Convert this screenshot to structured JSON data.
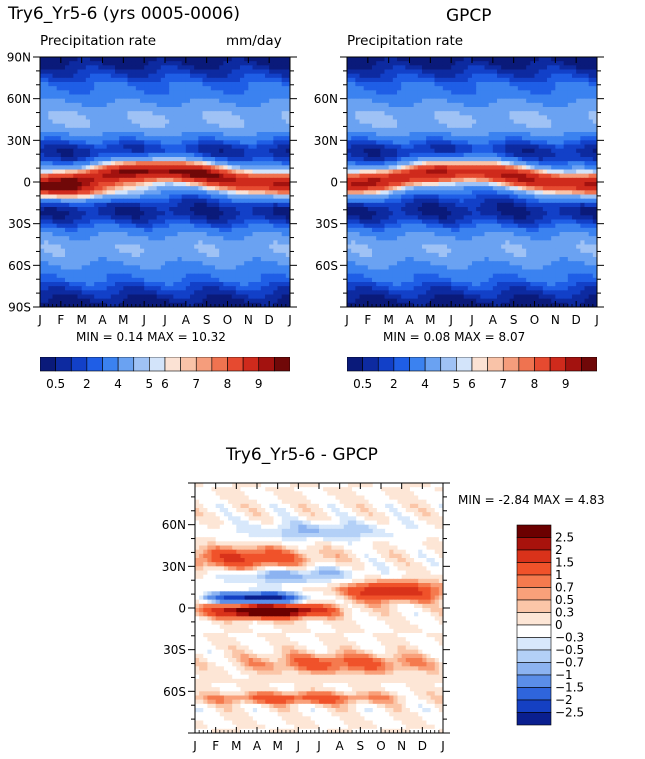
{
  "panel_ctrl": {
    "title": "Try6_Yr5-6 (yrs 0005-0006)",
    "subtitle": "Precipitation rate",
    "units": "mm/day",
    "minmax": "MIN =     0.14  MAX =    10.32"
  },
  "panel_obs": {
    "title": "GPCP",
    "subtitle": "Precipitation rate",
    "minmax": "MIN =     0.08  MAX =     8.07"
  },
  "panel_diff": {
    "title": "Try6_Yr5-6  -  GPCP",
    "minmax": "MIN =   -2.84  MAX =     4.83"
  },
  "abs_levels": [
    "0.5",
    "2",
    "4",
    "5",
    "6",
    "7",
    "8",
    "9"
  ],
  "diff_levels": [
    "2.5",
    "2",
    "1.5",
    "1",
    "0.7",
    "0.5",
    "0.3",
    "0",
    "−0.3",
    "−0.5",
    "−0.7",
    "−1",
    "−1.5",
    "−2",
    "−2.5"
  ],
  "colors": {
    "abs_palette": [
      "#0a1a7a",
      "#0d2aa0",
      "#1240c8",
      "#1f5ee6",
      "#3b82f0",
      "#6aa2f2",
      "#9fc2f5",
      "#d3e4fa",
      "#fbe2d4",
      "#f9c3a8",
      "#f59d7c",
      "#ef7350",
      "#e64a30",
      "#cf2a1c",
      "#a3120f",
      "#700808"
    ],
    "diff_palette": [
      "#6b0000",
      "#a8120c",
      "#d9321a",
      "#f0522a",
      "#f57a4e",
      "#f9a07a",
      "#fbc6a8",
      "#fde6d6",
      "#ffffff",
      "#d8e8fb",
      "#b3d0f7",
      "#8cb3f1",
      "#5b8ee8",
      "#2f65dc",
      "#1540c3",
      "#0a1f8f"
    ]
  },
  "chart_data": [
    {
      "type": "heatmap",
      "title": "Try6_Yr5-6 (yrs 0005-0006)",
      "subtitle": "Precipitation rate",
      "units": "mm/day",
      "x_ticks": [
        "J",
        "F",
        "M",
        "A",
        "M",
        "J",
        "J",
        "A",
        "S",
        "O",
        "N",
        "D",
        "J"
      ],
      "y_ticks": [
        "90N",
        "60N",
        "30N",
        "0",
        "30S",
        "60S",
        "90S"
      ],
      "ylim": [
        -90,
        90
      ],
      "min": 0.14,
      "max": 10.32
    },
    {
      "type": "heatmap",
      "title": "GPCP",
      "subtitle": "Precipitation rate",
      "x_ticks": [
        "J",
        "F",
        "M",
        "A",
        "M",
        "J",
        "J",
        "A",
        "S",
        "O",
        "N",
        "D",
        "J"
      ],
      "y_ticks": [
        "60N",
        "30N",
        "0",
        "30S",
        "60S"
      ],
      "ylim": [
        -90,
        90
      ],
      "min": 0.08,
      "max": 8.07
    },
    {
      "type": "heatmap",
      "title": "Try6_Yr5-6  -  GPCP",
      "x_ticks": [
        "J",
        "F",
        "M",
        "A",
        "M",
        "J",
        "J",
        "A",
        "S",
        "O",
        "N",
        "D",
        "J"
      ],
      "y_ticks": [
        "60N",
        "30N",
        "0",
        "30S",
        "60S"
      ],
      "ylim": [
        -90,
        90
      ],
      "min": -2.84,
      "max": 4.83
    }
  ]
}
